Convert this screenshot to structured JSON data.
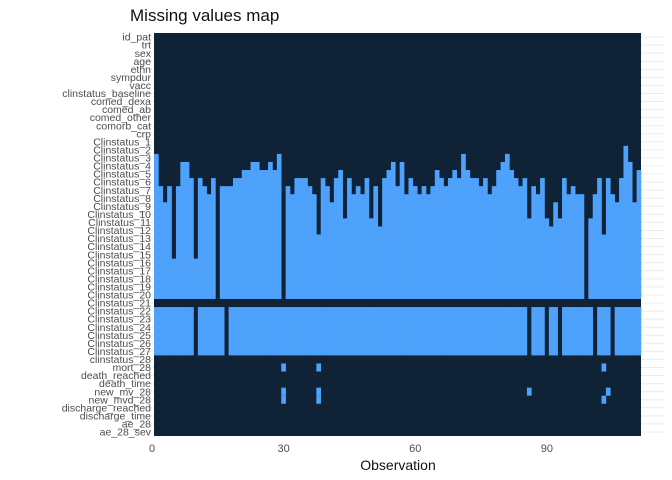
{
  "chart_data": {
    "type": "heatmap",
    "title": "Missing values map",
    "xlabel": "Observation",
    "ylabel": "",
    "xlim": [
      0,
      111
    ],
    "x_ticks": [
      0,
      30,
      60,
      90
    ],
    "colors": {
      "present": "#0f2236",
      "missing": "#4ea2fb",
      "grid": "#ececec"
    },
    "variables": [
      "id_pat",
      "trt",
      "sex",
      "age",
      "ethn",
      "sympdur",
      "vacc",
      "clinstatus_baseline",
      "comed_dexa",
      "comed_ab",
      "comed_other",
      "comorb_cat",
      "crp",
      "Clinstatus_1",
      "Clinstatus_2",
      "Clinstatus_3",
      "Clinstatus_4",
      "Clinstatus_5",
      "Clinstatus_6",
      "Clinstatus_7",
      "Clinstatus_8",
      "Clinstatus_9",
      "Clinstatus_10",
      "Clinstatus_11",
      "Clinstatus_12",
      "Clinstatus_13",
      "Clinstatus_14",
      "Clinstatus_15",
      "Clinstatus_16",
      "Clinstatus_17",
      "Clinstatus_18",
      "Clinstatus_19",
      "Clinstatus_20",
      "Clinstatus_21",
      "Clinstatus_22",
      "Clinstatus_23",
      "Clinstatus_24",
      "Clinstatus_25",
      "Clinstatus_26",
      "Clinstatus_27",
      "clinstatus_28",
      "mort_28",
      "death_reached",
      "death_time",
      "new_mv_28",
      "new_mvd_28",
      "discharge_reached",
      "discharge_time",
      "ae_28",
      "ae_28_sev"
    ],
    "missing_start_row": [
      15,
      19,
      21,
      19,
      28,
      19,
      16,
      16,
      18,
      28,
      18,
      19,
      20,
      18,
      33,
      19,
      19,
      19,
      18,
      18,
      17,
      17,
      16,
      16,
      17,
      17,
      16,
      17,
      15,
      33,
      19,
      20,
      18,
      18,
      18,
      19,
      20,
      25,
      18,
      19,
      21,
      18,
      17,
      23,
      18,
      20,
      19,
      20,
      18,
      23,
      19,
      24,
      18,
      17,
      16,
      19,
      16,
      20,
      18,
      19,
      20,
      19,
      20,
      19,
      17,
      18,
      19,
      18,
      17,
      18,
      15,
      17,
      18,
      18,
      19,
      18,
      20,
      19,
      17,
      16,
      15,
      17,
      18,
      19,
      18,
      23,
      19,
      20,
      18,
      23,
      24,
      21,
      23,
      18,
      20,
      19,
      20,
      20,
      33,
      23,
      20,
      18,
      25,
      18,
      20,
      21,
      18,
      14,
      16,
      21,
      17
    ],
    "present_columns": [
      9,
      16,
      85,
      89,
      92,
      100,
      104
    ],
    "present_column_until_row": 34,
    "row_all_present": 33,
    "isolated_missing": [
      {
        "variable": "mort_28",
        "observations": [
          29,
          37,
          102
        ]
      },
      {
        "variable": "new_mv_28",
        "observations": [
          29,
          37,
          85,
          103
        ]
      },
      {
        "variable": "new_mvd_28",
        "observations": [
          29,
          37,
          102
        ]
      }
    ]
  }
}
